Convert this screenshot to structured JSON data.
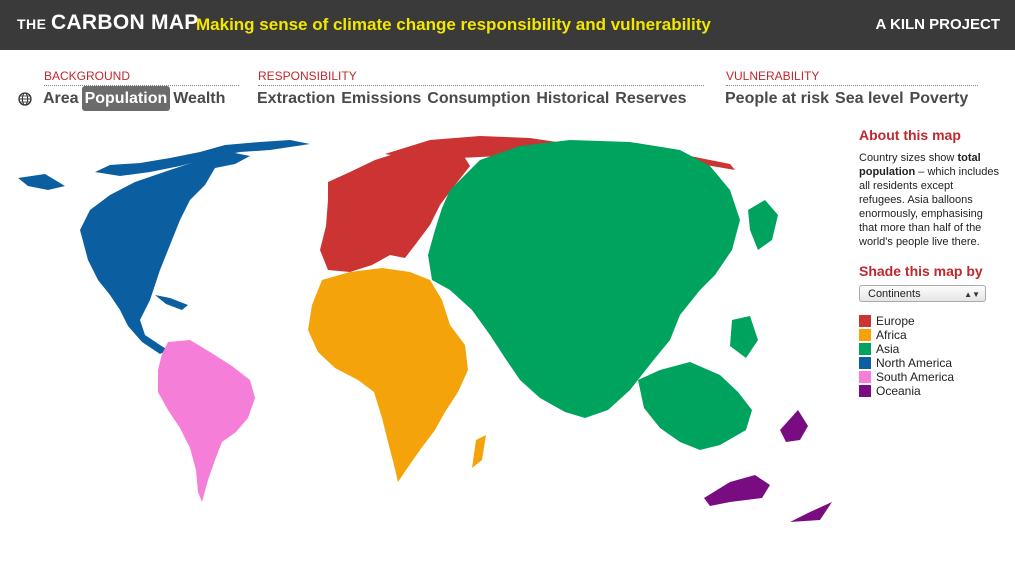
{
  "header": {
    "brand_small": "THE",
    "brand_big": "CARBON MAP",
    "tagline": "Making sense of climate change responsibility and vulnerability",
    "project": "A KILN PROJECT"
  },
  "categories": {
    "background": {
      "label": "BACKGROUND",
      "items": [
        "Area",
        "Population",
        "Wealth"
      ],
      "active": "Population"
    },
    "responsibility": {
      "label": "RESPONSIBILITY",
      "items": [
        "Extraction",
        "Emissions",
        "Consumption",
        "Historical",
        "Reserves"
      ]
    },
    "vulnerability": {
      "label": "VULNERABILITY",
      "items": [
        "People at risk",
        "Sea level",
        "Poverty"
      ]
    }
  },
  "icons": {
    "globe": "globe-icon"
  },
  "sidebar": {
    "about_title": "About this map",
    "about_pre": "Country sizes show ",
    "about_bold": "total population",
    "about_post": " – which includes all residents except refugees. Asia balloons enormously, emphasising that more than half of the world's people live there.",
    "shade_title": "Shade this map by",
    "select_value": "Continents",
    "legend": [
      {
        "label": "Europe",
        "color": "#cc3333"
      },
      {
        "label": "Africa",
        "color": "#f5a30a"
      },
      {
        "label": "Asia",
        "color": "#00a35e"
      },
      {
        "label": "North America",
        "color": "#0b5fa0"
      },
      {
        "label": "South America",
        "color": "#f57fd8"
      },
      {
        "label": "Oceania",
        "color": "#7a0c82"
      }
    ]
  }
}
